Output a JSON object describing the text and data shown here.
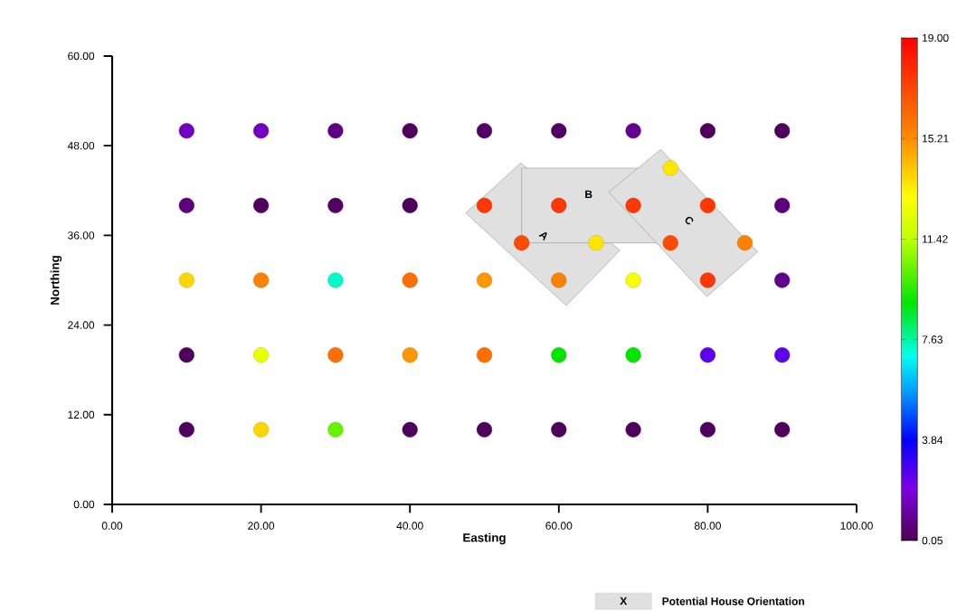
{
  "chart_data": {
    "type": "scatter",
    "xlabel": "Easting",
    "ylabel": "Northing",
    "x": [
      10,
      20,
      30,
      40,
      50,
      60,
      70,
      80,
      90,
      10,
      20,
      30,
      40,
      50,
      60,
      70,
      80,
      90,
      75,
      55,
      65,
      75,
      85,
      10,
      20,
      30,
      40,
      50,
      60,
      70,
      80,
      90,
      10,
      20,
      30,
      40,
      50,
      60,
      70,
      80,
      90,
      10,
      20,
      30,
      40,
      50,
      60,
      70,
      80,
      90
    ],
    "values": [
      50,
      50,
      50,
      50,
      50,
      50,
      50,
      50,
      50,
      40,
      40,
      40,
      40,
      40,
      40,
      40,
      40,
      40,
      45,
      35,
      35,
      35,
      35,
      30,
      30,
      30,
      30,
      30,
      30,
      30,
      30,
      30,
      20,
      20,
      20,
      20,
      20,
      20,
      20,
      20,
      20,
      10,
      10,
      10,
      10,
      10,
      10,
      10,
      10,
      10
    ],
    "cvalues": [
      1.5,
      1.5,
      0.7,
      0.2,
      0.3,
      0.3,
      0.9,
      0.2,
      0.2,
      0.6,
      0.2,
      0.3,
      0.2,
      17.5,
      17.5,
      17.5,
      17.5,
      0.6,
      13.5,
      17,
      13.5,
      17,
      15.5,
      13.8,
      15.5,
      7.3,
      16,
      15,
      15.5,
      12.8,
      17.5,
      0.8,
      0.2,
      12.5,
      16,
      15,
      16,
      9,
      9,
      2.5,
      2.5,
      0.2,
      13.8,
      10.3,
      0.2,
      0.2,
      0.2,
      0.2,
      0.2,
      0.2
    ],
    "clim": [
      0.05,
      19
    ],
    "cticks": [
      {
        "value": 0.05,
        "label": "0.05"
      },
      {
        "value": 3.84,
        "label": "3.84"
      },
      {
        "value": 7.63,
        "label": "7.63"
      },
      {
        "value": 11.42,
        "label": "11.42"
      },
      {
        "value": 15.21,
        "label": "15.21"
      },
      {
        "value": 19,
        "label": "19.00"
      }
    ],
    "xlim": [
      0,
      100
    ],
    "ylim": [
      0,
      60
    ],
    "xticks": [
      {
        "value": 0,
        "label": "0.00"
      },
      {
        "value": 20,
        "label": "20.00"
      },
      {
        "value": 40,
        "label": "40.00"
      },
      {
        "value": 60,
        "label": "60.00"
      },
      {
        "value": 80,
        "label": "80.00"
      },
      {
        "value": 100,
        "label": "100.00"
      }
    ],
    "yticks": [
      {
        "value": 0,
        "label": "0.00"
      },
      {
        "value": 12,
        "label": "12.00"
      },
      {
        "value": 24,
        "label": "24.00"
      },
      {
        "value": 36,
        "label": "36.00"
      },
      {
        "value": 48,
        "label": "48.00"
      },
      {
        "value": 60,
        "label": "60.00"
      }
    ],
    "marker": "circle",
    "grid": false,
    "annotations": [
      "A",
      "B",
      "C",
      "X",
      "Potential House Orientation"
    ]
  }
}
